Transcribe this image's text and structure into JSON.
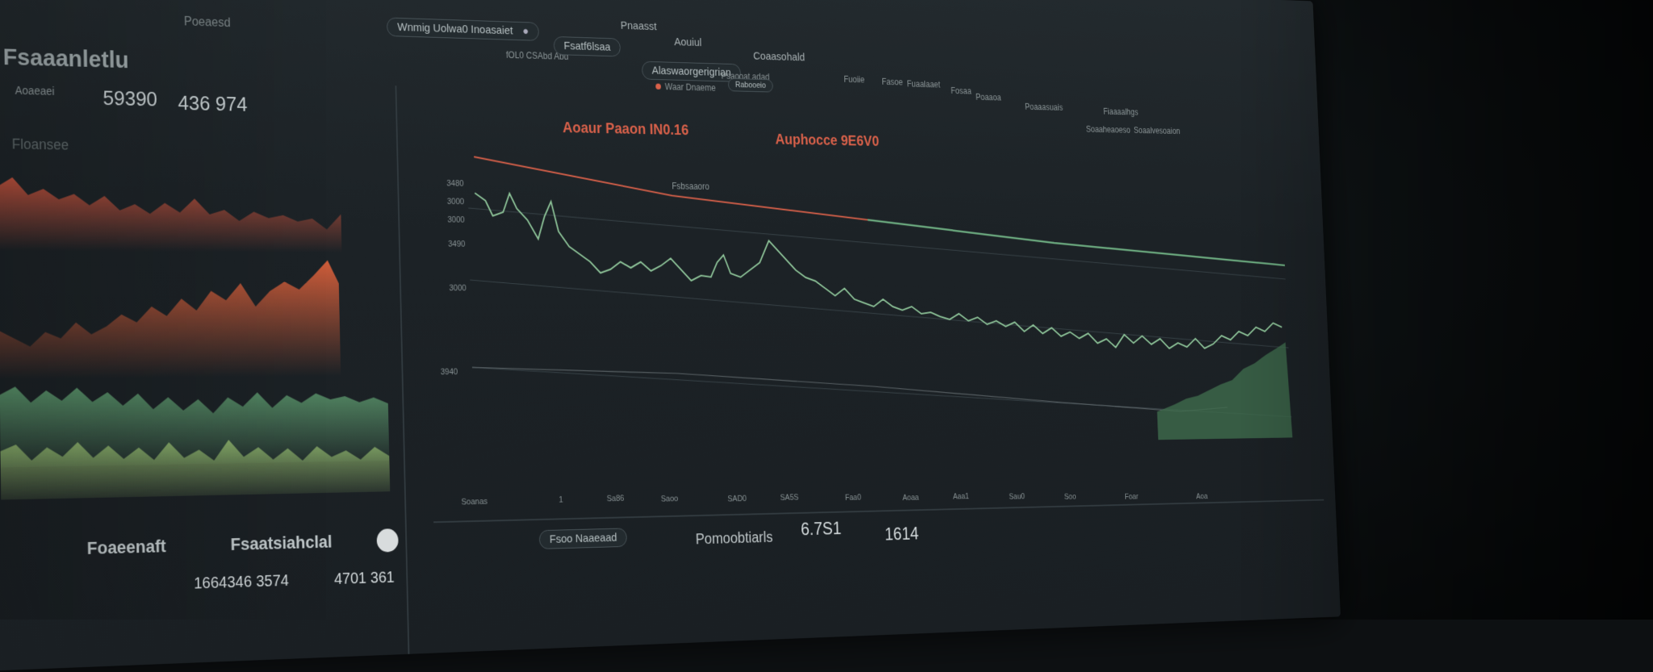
{
  "header": {
    "search_label": "Wnmig Uolwa0 Inoasaiet",
    "search_sub": "fOL0 CSAbd Abd",
    "tab_primary": "Fsatf6lsaa",
    "tab_secondary": "Pnaasst",
    "tab_accent": "Aouiul",
    "tab_filter": "Alaswaorgerigrian",
    "tab_filter_sub": "Psaooat adad",
    "tab_dashboard": "Coaasohald",
    "left_tag": "Poeaesd"
  },
  "right_nav": {
    "items": [
      "Fuoiie",
      "Fasoe",
      "Fuaalaaet",
      "Fosaa",
      "Poaaoa",
      "Poaaasuais",
      "Fiaaaalhgs",
      "Soaalvesoaion"
    ],
    "status_dot_label": "Waar Dnaeme",
    "status_text": "Soaaheaoeso"
  },
  "left_panel": {
    "title": "Fsaaanletlu",
    "subtitle": "Aoaeaei",
    "value_1": "59390",
    "value_2": "436 974",
    "caption": "Floansee",
    "footer_label_1": "Foaeenaft",
    "footer_label_2": "Fsaatsiahclal",
    "footer_value_1": "1664346 3574",
    "footer_value_2": "4701 361"
  },
  "main_panel": {
    "annotation_left": "Aoaur Paaon IN0.16",
    "annotation_right": "Auphocce 9E6V0",
    "legend_label": "Fsbsaaoro",
    "axis_labels": [
      "3480",
      "3000",
      "3000",
      "3490",
      "3000",
      "3940"
    ],
    "x_ticks": [
      "Soanas",
      "1",
      "Sa86",
      "Saoo",
      "SAD0",
      "SA5S",
      "Faa0",
      "Aoaa",
      "Aaa1",
      "Sau0",
      "Soo",
      "Foar",
      "Aoa"
    ],
    "dropdown_label": "Rabooeio",
    "footer_tab": "Fsoo Naaeaad",
    "footer_label": "Pomoobtiarls",
    "footer_value_1": "6.7S1",
    "footer_value_2": "1614"
  },
  "chart_data": {
    "type": "area",
    "series": [],
    "colors": {
      "red": "#c9543e",
      "orange": "#d9603b",
      "green": "#5d9a6e",
      "lightgreen": "#8cb06a",
      "line": "#8fc69a",
      "accent": "#d9614a"
    }
  }
}
